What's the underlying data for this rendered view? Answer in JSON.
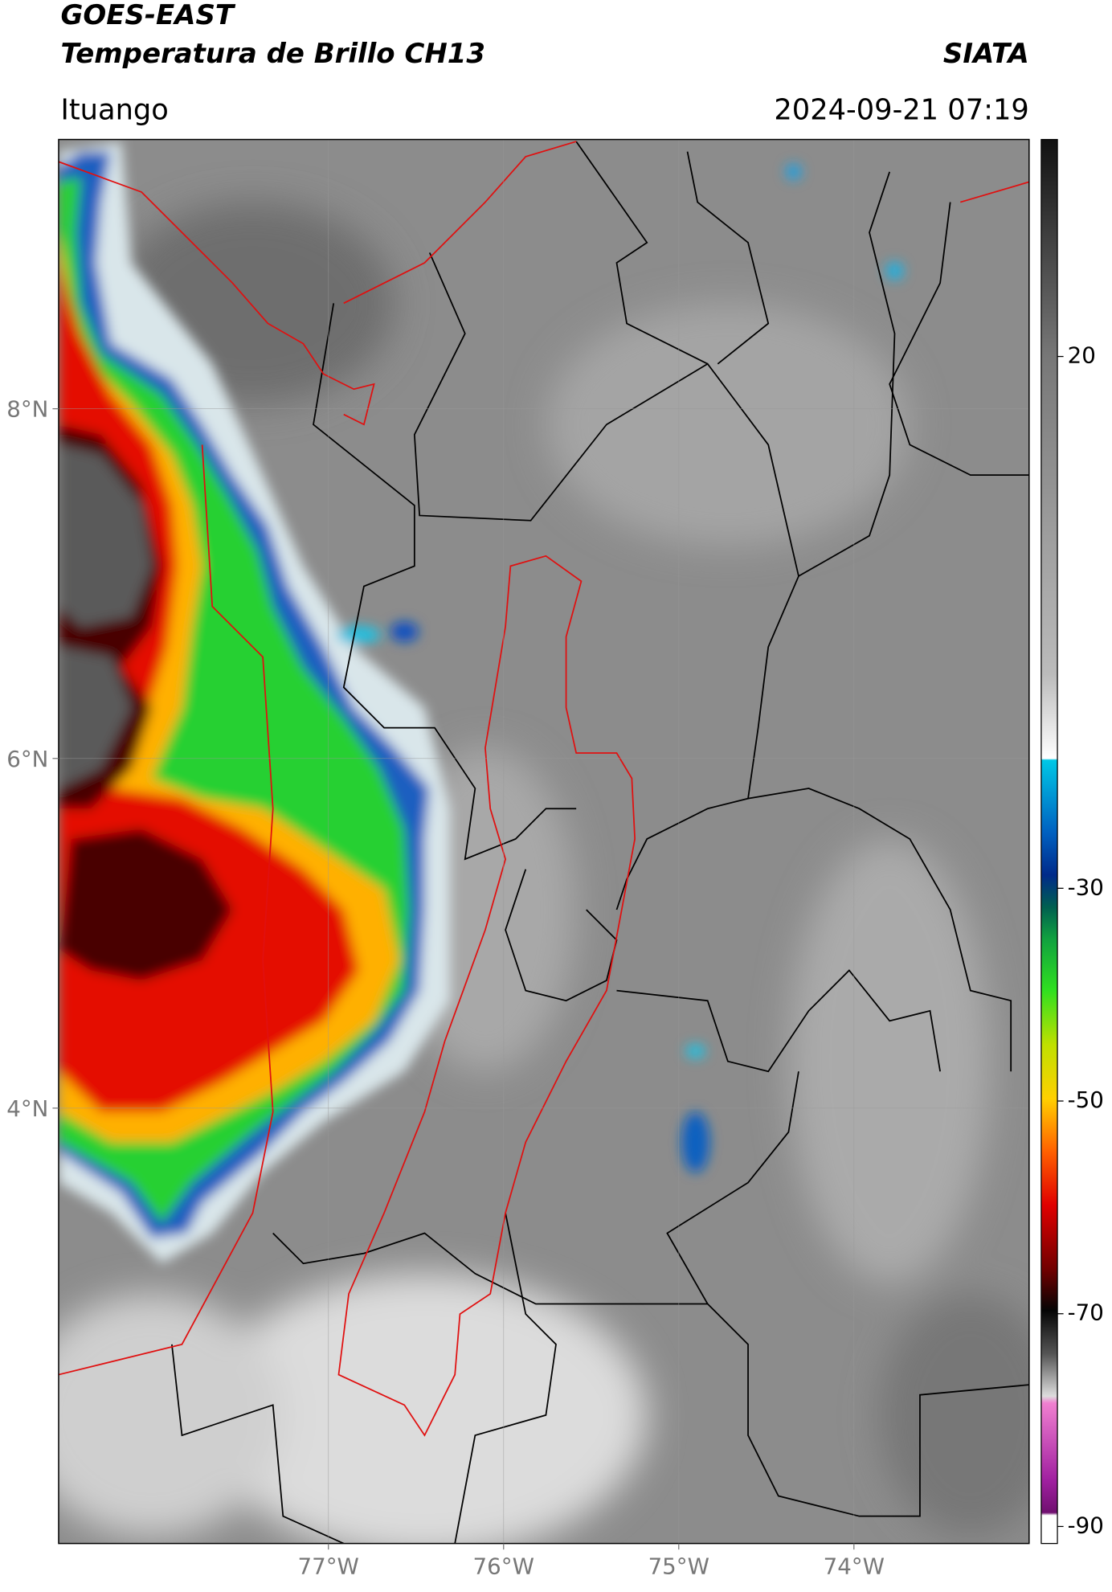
{
  "header": {
    "title_line1": "GOES-EAST",
    "title_line2": "Temperatura de Brillo CH13",
    "source": "SIATA",
    "location": "Ituango",
    "datetime": "2024-09-21 07:19"
  },
  "map": {
    "xlim": [
      -78.54,
      -73.0
    ],
    "ylim": [
      1.51,
      9.54
    ],
    "xticks": [
      {
        "value": -77,
        "label": "77°W"
      },
      {
        "value": -76,
        "label": "76°W"
      },
      {
        "value": -75,
        "label": "75°W"
      },
      {
        "value": -74,
        "label": "74°W"
      }
    ],
    "yticks": [
      {
        "value": 8,
        "label": "8°N"
      },
      {
        "value": 6,
        "label": "6°N"
      },
      {
        "value": 4,
        "label": "4°N"
      }
    ],
    "grid": true
  },
  "colorbar": {
    "clim": [
      -91.6,
      40.4
    ],
    "ticks": [
      20,
      -30,
      -50,
      -70,
      -90
    ]
  }
}
